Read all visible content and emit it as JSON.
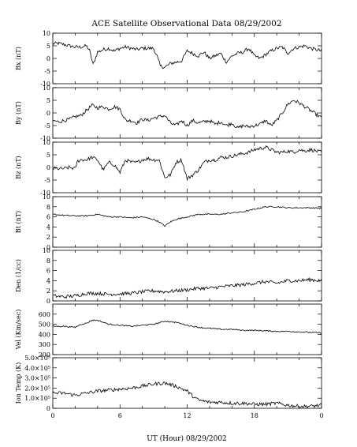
{
  "chart_data": {
    "type": "line",
    "title": "ACE Satellite Observational Data   08/29/2002",
    "xlabel": "UT (Hour)   08/29/2002",
    "x_range": [
      0,
      24
    ],
    "x_tick_labels": [
      "0",
      "6",
      "12",
      "18",
      "0"
    ],
    "grid": false,
    "panels": [
      {
        "name": "bx",
        "ylabel": "Bx (nT)",
        "ylim": [
          -10,
          10
        ],
        "y_tick_labels": [
          "-10",
          "-5",
          "0",
          "5",
          "10"
        ],
        "series": [
          {
            "x": [
              0,
              0.5,
              1,
              1.5,
              2,
              2.5,
              3,
              3.3,
              3.6,
              4,
              4.5,
              5,
              5.5,
              6,
              6.5,
              7,
              7.5,
              8,
              8.5,
              9,
              9.3,
              9.6,
              10,
              10.5,
              11,
              11.5,
              12,
              12.5,
              13,
              13.5,
              14,
              14.5,
              15,
              15.5,
              16,
              16.5,
              17,
              17.5,
              18,
              18.5,
              19,
              19.5,
              20,
              20.5,
              21,
              21.5,
              22,
              22.5,
              23,
              23.5,
              24
            ],
            "y": [
              5.8,
              6,
              5.5,
              5,
              4.5,
              4.5,
              5,
              3,
              -2.5,
              2.5,
              3.5,
              4,
              3,
              4,
              4.5,
              4,
              3.5,
              4,
              4,
              4,
              1,
              -3,
              -3.5,
              -2,
              -1.5,
              -1,
              3,
              2,
              1,
              2.5,
              0,
              1,
              2,
              -1.5,
              1,
              2,
              2.5,
              4,
              1,
              0,
              1.5,
              3,
              4,
              4.5,
              2,
              4,
              4.5,
              5,
              4,
              3.5,
              3
            ]
          }
        ]
      },
      {
        "name": "by",
        "ylabel": "By (nT)",
        "ylim": [
          -10,
          10
        ],
        "y_tick_labels": [
          "-10",
          "-5",
          "0",
          "5",
          "10"
        ],
        "series": [
          {
            "x": [
              0,
              0.5,
              1,
              1.5,
              2,
              2.5,
              3,
              3.5,
              4,
              4.5,
              5,
              5.5,
              6,
              6.5,
              7,
              7.5,
              8,
              8.5,
              9,
              9.5,
              10,
              10.5,
              11,
              11.5,
              12,
              12.5,
              13,
              13.5,
              14,
              14.5,
              15,
              15.5,
              16,
              16.5,
              17,
              17.5,
              18,
              18.5,
              19,
              19.5,
              20,
              20.5,
              21,
              21.5,
              22,
              22.5,
              23,
              23.5,
              24
            ],
            "y": [
              -3,
              -3.5,
              -3,
              -2.5,
              -1.5,
              -1,
              1,
              3,
              2,
              2.5,
              1.5,
              2.5,
              1.5,
              -3,
              -3,
              -4,
              -2.5,
              -3,
              -2,
              -1.5,
              -1,
              -4,
              -5,
              -3,
              -5,
              -3,
              -4,
              -3.5,
              -3,
              -4.5,
              -3.5,
              -5,
              -4,
              -6,
              -5,
              -5.5,
              -5,
              -4.5,
              -3,
              -5,
              -3,
              0,
              3.5,
              5,
              4,
              2.5,
              1,
              -0.5,
              -2
            ]
          }
        ]
      },
      {
        "name": "bz",
        "ylabel": "Bz (nT)",
        "ylim": [
          -10,
          10
        ],
        "y_tick_labels": [
          "-10",
          "-5",
          "0",
          "5",
          "10"
        ],
        "series": [
          {
            "x": [
              0,
              0.5,
              1,
              1.5,
              2,
              2.2,
              2.5,
              3,
              3.5,
              4,
              4.5,
              5,
              5.5,
              6,
              6.5,
              7,
              7.5,
              8,
              8.5,
              9,
              9.5,
              10,
              10.5,
              11,
              11.5,
              12,
              12.5,
              13,
              13.5,
              14,
              14.5,
              15,
              15.5,
              16,
              16.5,
              17,
              17.5,
              18,
              18.5,
              19,
              19.5,
              20,
              20.5,
              21,
              21.5,
              22,
              22.5,
              23,
              23.5,
              24
            ],
            "y": [
              -0.5,
              -0.5,
              -0.5,
              0,
              -0.5,
              2.5,
              3,
              3,
              4,
              3,
              -1,
              2,
              1,
              -2,
              3,
              2,
              2,
              3,
              3.5,
              3,
              3,
              -4,
              -3,
              2,
              3,
              -4.5,
              -3,
              -1,
              2,
              3,
              3,
              4,
              4,
              4.5,
              5,
              5.5,
              6,
              7,
              7.5,
              8,
              7,
              6,
              6,
              6.5,
              6,
              7,
              6.5,
              7,
              6.5,
              6
            ]
          }
        ]
      },
      {
        "name": "bt",
        "ylabel": "Bt (nT)",
        "ylim": [
          0,
          10
        ],
        "y_tick_labels": [
          "0",
          "2",
          "4",
          "6",
          "8",
          "10"
        ],
        "series": [
          {
            "x": [
              0,
              1,
              2,
              3,
              4,
              5,
              6,
              7,
              8,
              9,
              9.5,
              10,
              10.5,
              11,
              12,
              13,
              14,
              15,
              16,
              17,
              18,
              19,
              20,
              21,
              22,
              23,
              24
            ],
            "y": [
              6.5,
              6.3,
              6.2,
              6.2,
              6.5,
              6,
              6,
              5.8,
              6,
              5.5,
              5,
              4.2,
              5,
              5.5,
              6,
              6.5,
              6.5,
              6.5,
              6.8,
              7,
              7.5,
              8,
              8,
              7.8,
              7.8,
              7.8,
              7.7
            ]
          }
        ]
      },
      {
        "name": "den",
        "ylabel": "Den (1/cc)",
        "ylim": [
          0,
          10
        ],
        "y_tick_labels": [
          "0",
          "2",
          "4",
          "6",
          "8",
          "10"
        ],
        "series": [
          {
            "x": [
              0,
              1,
              2,
              3,
              4,
              5,
              6,
              7,
              8,
              9,
              10,
              11,
              12,
              13,
              14,
              15,
              16,
              17,
              18,
              19,
              20,
              21,
              22,
              23,
              24
            ],
            "y": [
              1,
              0.8,
              1,
              1.5,
              1.5,
              1.3,
              1.4,
              1.5,
              1.8,
              2,
              1.8,
              2,
              2.2,
              2.5,
              2.5,
              2.8,
              3,
              3.2,
              3.5,
              3.8,
              3.5,
              4,
              4,
              4.2,
              4
            ]
          }
        ]
      },
      {
        "name": "vel",
        "ylabel": "Vel (Km/sec)",
        "ylim": [
          200,
          700
        ],
        "y_tick_labels": [
          "200",
          "300",
          "400",
          "500",
          "600"
        ],
        "series": [
          {
            "x": [
              0,
              1,
              2,
              2.5,
              3,
              3.5,
              4,
              4.5,
              5,
              6,
              7,
              8,
              9,
              10,
              11,
              12,
              13,
              14,
              15,
              16,
              17,
              18,
              19,
              20,
              21,
              22,
              23,
              24
            ],
            "y": [
              480,
              480,
              470,
              500,
              510,
              540,
              540,
              520,
              500,
              490,
              480,
              490,
              500,
              530,
              520,
              490,
              470,
              460,
              450,
              450,
              440,
              440,
              435,
              430,
              430,
              425,
              420,
              415
            ]
          }
        ]
      },
      {
        "name": "temp",
        "ylabel": "Ion Temp (K)",
        "ylim": [
          0,
          5
        ],
        "y_tick_labels": [
          "0",
          "1.0×10⁵",
          "2.0×10⁵",
          "3.0×10⁵",
          "4.0×10⁵",
          "5.0×10⁵"
        ],
        "series": [
          {
            "x": [
              0,
              1,
              2,
              3,
              4,
              5,
              6,
              7,
              8,
              9,
              10,
              11,
              12,
              12.5,
              13,
              14,
              15,
              16,
              17,
              18,
              19,
              20,
              21,
              22,
              23,
              24
            ],
            "y": [
              1.5,
              1.5,
              1.3,
              1.5,
              1.7,
              1.8,
              1.9,
              2,
              2.2,
              2.4,
              2.5,
              2.2,
              1.7,
              1.2,
              0.8,
              0.6,
              0.6,
              0.5,
              0.5,
              0.4,
              0.4,
              0.5,
              0.3,
              0.2,
              0.2,
              0.3
            ]
          }
        ]
      }
    ]
  }
}
